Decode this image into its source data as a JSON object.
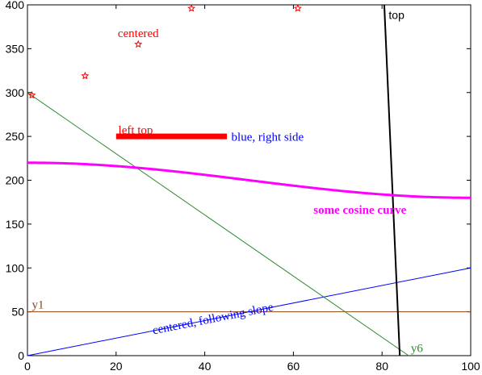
{
  "chart_data": {
    "type": "line",
    "title": "",
    "xlabel": "",
    "ylabel": "",
    "xlim": [
      0,
      100
    ],
    "ylim": [
      0,
      400
    ],
    "x_ticks": [
      0,
      20,
      40,
      60,
      80,
      100
    ],
    "y_ticks": [
      0,
      50,
      100,
      150,
      200,
      250,
      300,
      350,
      400
    ],
    "grid": false,
    "series": [
      {
        "label": "y1",
        "kind": "line",
        "color": "#8b4513",
        "width": 1,
        "points": [
          [
            0,
            50
          ],
          [
            100,
            50
          ]
        ]
      },
      {
        "label": "centered, following slope",
        "kind": "line",
        "color": "#0000ff",
        "width": 1,
        "points": [
          [
            0,
            0
          ],
          [
            100,
            100
          ]
        ]
      },
      {
        "label": "y6",
        "kind": "line",
        "color": "#2e8b2e",
        "width": 1,
        "points": [
          [
            0,
            300
          ],
          [
            86,
            0
          ]
        ]
      },
      {
        "label": "top",
        "kind": "line",
        "color": "#000000",
        "width": 2,
        "points": [
          [
            80.5,
            400
          ],
          [
            84,
            0
          ]
        ]
      },
      {
        "label": "blue, right side",
        "kind": "segment",
        "color": "#ff0000",
        "width": 7,
        "points": [
          [
            20,
            250
          ],
          [
            45,
            250
          ]
        ]
      },
      {
        "label": "some cosine curve",
        "kind": "cosine",
        "color": "#ff00ff",
        "width": 3,
        "x_range": [
          0,
          100
        ],
        "mean": 200,
        "amplitude": 20,
        "period": 200
      },
      {
        "label": "centered",
        "kind": "markers",
        "color": "#ff0000",
        "marker": "star",
        "points": [
          [
            1,
            297
          ],
          [
            13,
            319
          ],
          [
            25,
            355
          ],
          [
            37,
            396
          ],
          [
            61,
            396
          ]
        ]
      }
    ],
    "annotations": [
      {
        "text": "centered",
        "x": 25,
        "y": 363,
        "color": "#ff0000",
        "font": "serif",
        "anchor": "middle"
      },
      {
        "text": "left top",
        "x": 20.5,
        "y": 253,
        "color": "#ff0000",
        "font": "serif",
        "anchor": "start"
      },
      {
        "text": "blue, right side",
        "x": 46,
        "y": 245,
        "color": "#0000ff",
        "font": "serif",
        "anchor": "start"
      },
      {
        "text": "some cosine curve",
        "x": 75,
        "y": 162,
        "color": "#ff00ff",
        "font": "serif",
        "anchor": "middle",
        "bold": true
      },
      {
        "text": "top",
        "x": 81.5,
        "y": 384,
        "color": "#000000",
        "font": "sans",
        "anchor": "start"
      },
      {
        "text": "y1",
        "x": 1,
        "y": 54,
        "color": "#8b4513",
        "font": "serif",
        "anchor": "start"
      },
      {
        "text": "centered, following slope",
        "x": 42,
        "y": 38,
        "color": "#0000ff",
        "font": "serif",
        "anchor": "middle",
        "rotate_with_slope": true
      },
      {
        "text": "y6",
        "x": 86.5,
        "y": 4,
        "color": "#2e8b2e",
        "font": "serif",
        "anchor": "start"
      }
    ]
  }
}
